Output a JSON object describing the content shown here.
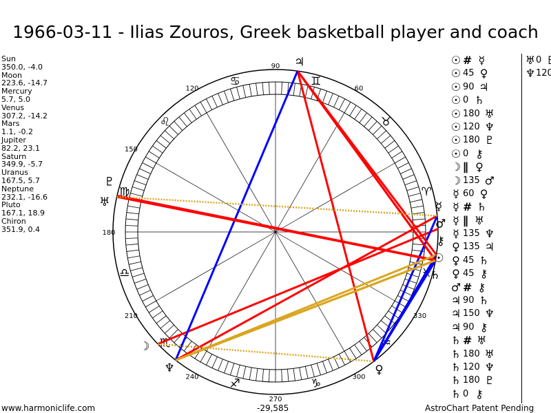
{
  "title": "1966-03-11 - Ilias Zouros, Greek basketball player and coach",
  "planets": [
    {
      "name": "Sun",
      "pos": "350.0, -4.0",
      "lon": 350.0,
      "glyph": "☉"
    },
    {
      "name": "Moon",
      "pos": "223.6, -14.7",
      "lon": 223.6,
      "glyph": "☽"
    },
    {
      "name": "Mercury",
      "pos": "5.7, 5.0",
      "lon": 5.7,
      "glyph": "☿"
    },
    {
      "name": "Venus",
      "pos": "307.2, -14.2",
      "lon": 307.2,
      "glyph": "♀"
    },
    {
      "name": "Mars",
      "pos": "1.1, -0.2",
      "lon": 1.1,
      "glyph": "♂"
    },
    {
      "name": "Jupiter",
      "pos": "82.2, 23.1",
      "lon": 82.2,
      "glyph": "♃"
    },
    {
      "name": "Saturn",
      "pos": "349.9, -5.7",
      "lon": 349.9,
      "glyph": "♄"
    },
    {
      "name": "Uranus",
      "pos": "167.5, 5.7",
      "lon": 167.5,
      "glyph": "♅"
    },
    {
      "name": "Neptune",
      "pos": "232.1, -16.6",
      "lon": 232.1,
      "glyph": "♆"
    },
    {
      "name": "Pluto",
      "pos": "167.1, 18.9",
      "lon": 167.1,
      "glyph": "♇"
    },
    {
      "name": "Chiron",
      "pos": "351.9, 0.4",
      "lon": 351.9,
      "glyph": "⚷"
    }
  ],
  "aspects": [
    [
      "☉",
      "#",
      "☿"
    ],
    [
      "☉",
      "45",
      "♀"
    ],
    [
      "☉",
      "90",
      "♃"
    ],
    [
      "☉",
      "0",
      "♄"
    ],
    [
      "☉",
      "180",
      "♅"
    ],
    [
      "☉",
      "120",
      "♆"
    ],
    [
      "☉",
      "180",
      "♇"
    ],
    [
      "☉",
      "0",
      "⚷"
    ],
    [
      "☽",
      "∥",
      "♀"
    ],
    [
      "☽",
      "135",
      "♂"
    ],
    [
      "☿",
      "60",
      "♀"
    ],
    [
      "☿",
      "#",
      "♄"
    ],
    [
      "☿",
      "∥",
      "♅"
    ],
    [
      "☿",
      "135",
      "♆"
    ],
    [
      "♀",
      "135",
      "♃"
    ],
    [
      "♀",
      "45",
      "♄"
    ],
    [
      "♀",
      "45",
      "⚷"
    ],
    [
      "♂",
      "#",
      "⚷"
    ],
    [
      "♃",
      "90",
      "♄"
    ],
    [
      "♃",
      "150",
      "♆"
    ],
    [
      "♃",
      "90",
      "⚷"
    ],
    [
      "♄",
      "#",
      "♅"
    ],
    [
      "♄",
      "180",
      "♅"
    ],
    [
      "♄",
      "120",
      "♆"
    ],
    [
      "♄",
      "180",
      "♇"
    ],
    [
      "♄",
      "0",
      "⚷"
    ]
  ],
  "aspects2": [
    [
      "♅",
      "0",
      "♇"
    ],
    [
      "♆",
      "120",
      "⚷"
    ]
  ],
  "signs": [
    "♈",
    "♉",
    "♊",
    "♋",
    "♌",
    "♍",
    "♎",
    "♏",
    "♐",
    "♑",
    "♒",
    "♓"
  ],
  "degree_labels": [
    "60",
    "90",
    "120",
    "150",
    "180",
    "210",
    "240",
    "270",
    "300",
    "330"
  ],
  "lines": [
    {
      "a": 0,
      "b": 5,
      "c": "#ff0000"
    },
    {
      "a": 0,
      "b": 7,
      "c": "#ff0000"
    },
    {
      "a": 0,
      "b": 9,
      "c": "#ff0000"
    },
    {
      "a": 0,
      "b": 8,
      "c": "#daa520"
    },
    {
      "a": 0,
      "b": 3,
      "c": "#0000ff"
    },
    {
      "a": 1,
      "b": 4,
      "c": "#ff0000"
    },
    {
      "a": 2,
      "b": 8,
      "c": "#ff0000"
    },
    {
      "a": 3,
      "b": 5,
      "c": "#ff0000"
    },
    {
      "a": 3,
      "b": 6,
      "c": "#0000ff"
    },
    {
      "a": 3,
      "b": 10,
      "c": "#0000ff"
    },
    {
      "a": 2,
      "b": 3,
      "c": "#0000ff"
    },
    {
      "a": 5,
      "b": 6,
      "c": "#ff0000"
    },
    {
      "a": 5,
      "b": 10,
      "c": "#ff0000"
    },
    {
      "a": 5,
      "b": 8,
      "c": "#0000ff"
    },
    {
      "a": 6,
      "b": 7,
      "c": "#ff0000"
    },
    {
      "a": 6,
      "b": 9,
      "c": "#ff0000"
    },
    {
      "a": 6,
      "b": 8,
      "c": "#daa520"
    },
    {
      "a": 8,
      "b": 10,
      "c": "#daa520"
    },
    {
      "a": 2,
      "b": 7,
      "c": "#daa520",
      "dot": true
    },
    {
      "a": 1,
      "b": 3,
      "c": "#daa520",
      "dot": true
    }
  ],
  "footer": {
    "site": "www.harmoniclife.com",
    "value": "-29,585",
    "note": "AstroChart Patent Pending"
  }
}
